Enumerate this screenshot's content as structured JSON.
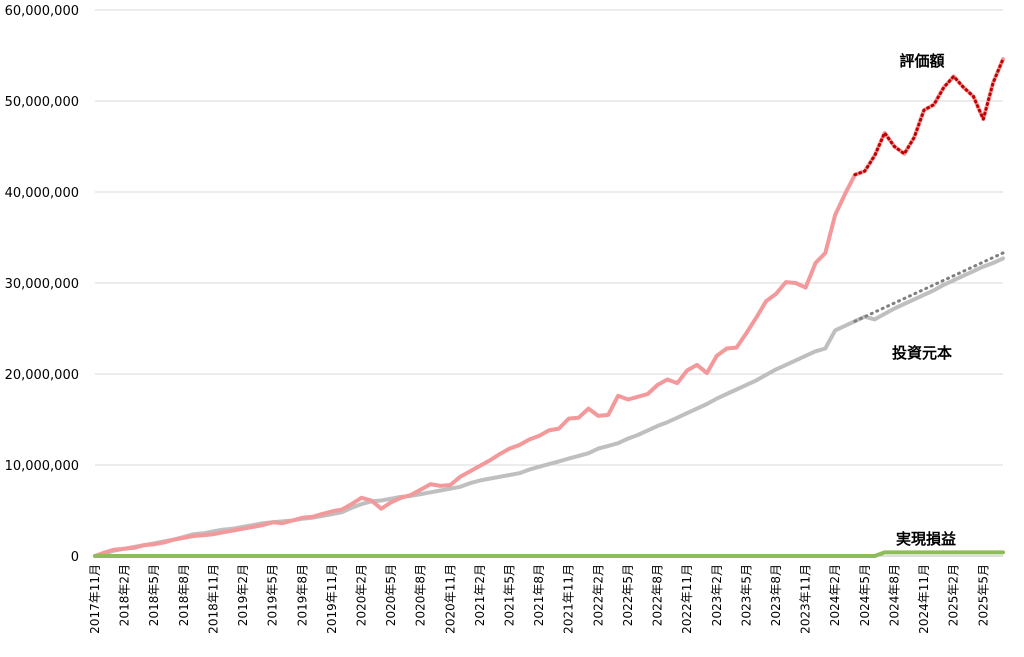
{
  "chart_data": {
    "type": "line",
    "title": "",
    "xlabel": "",
    "ylabel": "",
    "ylim": [
      0,
      60000000
    ],
    "grid": true,
    "y_ticks": [
      0,
      10000000,
      20000000,
      30000000,
      40000000,
      50000000,
      60000000
    ],
    "y_tick_labels": [
      "0",
      "10,000,000",
      "20,000,000",
      "30,000,000",
      "40,000,000",
      "50,000,000",
      "60,000,000"
    ],
    "x_tick_labels": [
      "2017年11月",
      "2018年2月",
      "2018年5月",
      "2018年8月",
      "2018年11月",
      "2019年2月",
      "2019年5月",
      "2019年8月",
      "2019年11月",
      "2020年2月",
      "2020年5月",
      "2020年8月",
      "2020年11月",
      "2021年2月",
      "2021年5月",
      "2021年8月",
      "2021年11月",
      "2022年2月",
      "2022年5月",
      "2022年8月",
      "2022年11月",
      "2023年2月",
      "2023年5月",
      "2023年8月",
      "2023年11月",
      "2024年2月",
      "2024年5月",
      "2024年8月",
      "2024年11月",
      "2025年2月",
      "2025年5月"
    ],
    "x_start": "2017年11月",
    "series": [
      {
        "name": "評価額",
        "color": "#f4999b",
        "dotted_overlay_color": "#c00000",
        "dotted_from_index": 77,
        "values": [
          0,
          400000,
          700000,
          800000,
          900000,
          1200000,
          1300000,
          1500000,
          1800000,
          2000000,
          2200000,
          2300000,
          2400000,
          2600000,
          2800000,
          3000000,
          3200000,
          3400000,
          3700000,
          3600000,
          3900000,
          4200000,
          4300000,
          4600000,
          4900000,
          5100000,
          5700000,
          6400000,
          6100000,
          5200000,
          5900000,
          6400000,
          6700000,
          7300000,
          7900000,
          7700000,
          7800000,
          8700000,
          9300000,
          9900000,
          10500000,
          11200000,
          11800000,
          12200000,
          12800000,
          13200000,
          13800000,
          14000000,
          15100000,
          15200000,
          16200000,
          15400000,
          15500000,
          17600000,
          17200000,
          17500000,
          17800000,
          18800000,
          19400000,
          19000000,
          20400000,
          21000000,
          20100000,
          22000000,
          22800000,
          22900000,
          24500000,
          26200000,
          28000000,
          28800000,
          30100000,
          30000000,
          29500000,
          32200000,
          33300000,
          37500000,
          39800000,
          41900000,
          42300000,
          44000000,
          46500000,
          45000000,
          44200000,
          46000000,
          49000000,
          49600000,
          51500000,
          52700000,
          51500000,
          50500000,
          48000000,
          52000000,
          54600000
        ]
      },
      {
        "name": "投資元本",
        "color": "#bfbfbf",
        "dotted_overlay_color": "#7f7f7f",
        "dotted_from_index": 77,
        "values": [
          0,
          300000,
          600000,
          800000,
          1000000,
          1200000,
          1400000,
          1600000,
          1800000,
          2100000,
          2400000,
          2500000,
          2700000,
          2900000,
          3000000,
          3200000,
          3400000,
          3600000,
          3700000,
          3800000,
          3900000,
          4100000,
          4200000,
          4400000,
          4600000,
          4800000,
          5300000,
          5700000,
          6000000,
          6100000,
          6300000,
          6500000,
          6600000,
          6800000,
          7000000,
          7200000,
          7400000,
          7600000,
          8000000,
          8300000,
          8500000,
          8700000,
          8900000,
          9100000,
          9500000,
          9800000,
          10100000,
          10400000,
          10700000,
          11000000,
          11300000,
          11800000,
          12100000,
          12400000,
          12900000,
          13300000,
          13800000,
          14300000,
          14700000,
          15200000,
          15700000,
          16200000,
          16700000,
          17300000,
          17800000,
          18300000,
          18800000,
          19300000,
          19900000,
          20500000,
          21000000,
          21500000,
          22000000,
          22500000,
          22800000,
          24800000,
          25300000,
          25800000,
          26300000,
          26000000,
          26600000,
          27200000,
          27700000,
          28200000,
          28700000,
          29200000,
          29800000,
          30300000,
          30800000,
          31300000,
          31800000,
          32200000,
          32700000
        ]
      },
      {
        "name": "実現損益",
        "color": "#8fbc5a",
        "values": [
          0,
          0,
          0,
          0,
          0,
          0,
          0,
          0,
          0,
          0,
          0,
          0,
          0,
          0,
          0,
          0,
          0,
          0,
          0,
          0,
          0,
          0,
          0,
          0,
          0,
          0,
          0,
          0,
          0,
          0,
          0,
          0,
          0,
          0,
          0,
          0,
          0,
          0,
          0,
          0,
          0,
          0,
          0,
          0,
          0,
          0,
          0,
          0,
          0,
          0,
          0,
          0,
          0,
          0,
          0,
          0,
          0,
          0,
          0,
          0,
          0,
          0,
          0,
          0,
          0,
          0,
          0,
          0,
          0,
          0,
          0,
          0,
          0,
          0,
          0,
          0,
          0,
          0,
          0,
          0,
          400000,
          400000,
          400000,
          400000,
          400000,
          400000,
          400000,
          400000,
          400000,
          400000,
          400000,
          400000,
          400000
        ]
      }
    ]
  }
}
